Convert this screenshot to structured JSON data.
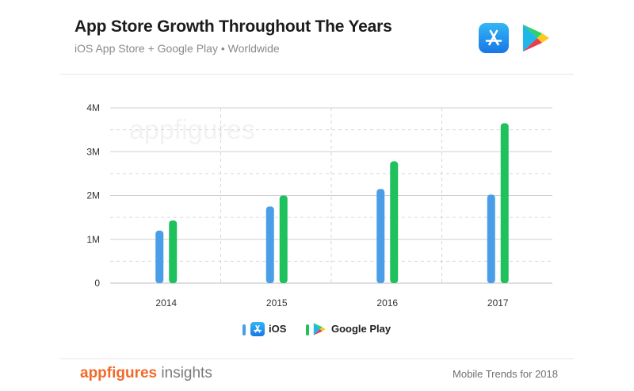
{
  "header": {
    "title": "App Store Growth Throughout The Years",
    "subtitle": "iOS App Store + Google Play • Worldwide"
  },
  "icons": {
    "app_store": "app-store-icon",
    "google_play": "google-play-icon"
  },
  "colors": {
    "ios": "#4a9ee8",
    "google_play": "#1fc15d",
    "grid": "#cccccc",
    "text": "#333333",
    "brand_orange": "#f26a2a"
  },
  "chart_data": {
    "type": "bar",
    "categories": [
      "2014",
      "2015",
      "2016",
      "2017"
    ],
    "series": [
      {
        "name": "iOS",
        "values": [
          1.2,
          1.75,
          2.15,
          2.02
        ]
      },
      {
        "name": "Google Play",
        "values": [
          1.43,
          2.0,
          2.78,
          3.65
        ]
      }
    ],
    "y_ticks": [
      0,
      1,
      2,
      3,
      4
    ],
    "y_tick_labels": [
      "0",
      "1M",
      "2M",
      "3M",
      "4M"
    ],
    "ylim": [
      0,
      4
    ],
    "unit": "millions of apps",
    "grid": true,
    "legend_position": "bottom-center",
    "watermark": "appfigures"
  },
  "legend": {
    "ios_label": "iOS",
    "play_label": "Google Play"
  },
  "footer": {
    "brand": "appfigures",
    "brand_suffix": " insights",
    "right_text": "Mobile Trends for 2018"
  }
}
